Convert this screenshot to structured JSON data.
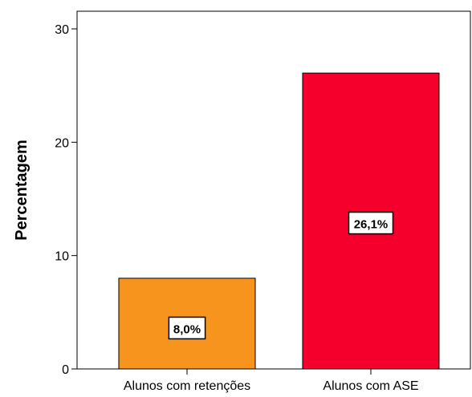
{
  "chart_data": {
    "type": "bar",
    "title": "",
    "xlabel": "",
    "ylabel": "Percentagem",
    "ylim": [
      0,
      30
    ],
    "yticks": [
      0,
      10,
      20,
      30
    ],
    "grid": false,
    "legend": "none",
    "categories": [
      "Alunos com retenções",
      "Alunos com ASE"
    ],
    "values": [
      8.0,
      26.1
    ],
    "data_labels": [
      "8,0%",
      "26,1%"
    ],
    "colors": [
      "#f7941d",
      "#f5002d"
    ]
  }
}
